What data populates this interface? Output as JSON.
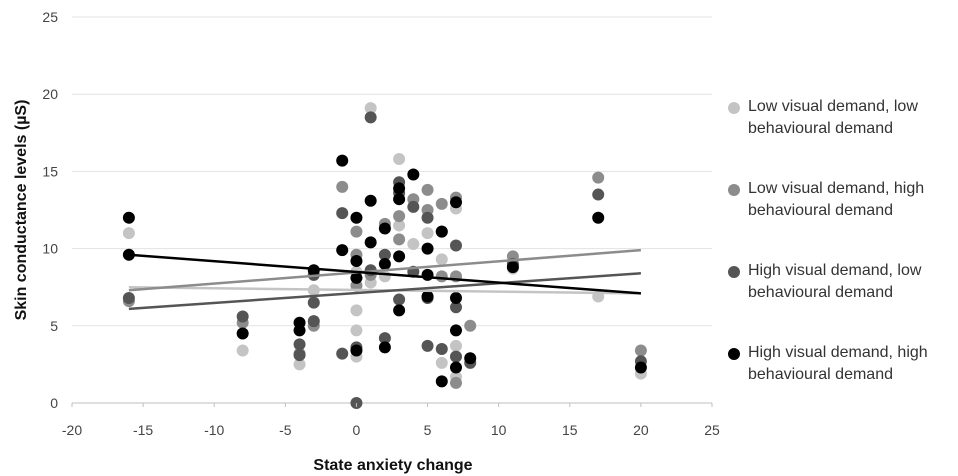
{
  "chart_data": {
    "type": "scatter",
    "xlabel": "State anxiety change",
    "ylabel": "Skin conductance levels (µS)",
    "xlim": [
      -20,
      25
    ],
    "ylim": [
      0,
      25
    ],
    "xticks": [
      "-20",
      "-15",
      "-10",
      "-5",
      "0",
      "5",
      "10",
      "15",
      "20",
      "25"
    ],
    "yticks": [
      "0",
      "5",
      "10",
      "15",
      "20",
      "25"
    ],
    "grid": "horizontal",
    "legend_position": "right",
    "series": [
      {
        "name": "Low visual demand, low behavioural demand",
        "color": "#c4c4c4",
        "points": [
          [
            -16,
            11.0
          ],
          [
            -8,
            3.4
          ],
          [
            -4,
            2.5
          ],
          [
            -3,
            7.3
          ],
          [
            0,
            6.0
          ],
          [
            0,
            4.7
          ],
          [
            0,
            3.0
          ],
          [
            0,
            8.5
          ],
          [
            1,
            19.1
          ],
          [
            1,
            7.8
          ],
          [
            2,
            8.2
          ],
          [
            3,
            15.8
          ],
          [
            3,
            11.5
          ],
          [
            4,
            10.3
          ],
          [
            5,
            11.0
          ],
          [
            6,
            9.3
          ],
          [
            6,
            2.6
          ],
          [
            7,
            12.6
          ],
          [
            7,
            3.7
          ],
          [
            7,
            1.7
          ],
          [
            11,
            8.7
          ],
          [
            17,
            6.9
          ],
          [
            20,
            1.9
          ]
        ],
        "trend": [
          [
            -16,
            7.5
          ],
          [
            20,
            7.1
          ]
        ]
      },
      {
        "name": "Low visual demand, high behavioural demand",
        "color": "#8c8c8c",
        "points": [
          [
            -16,
            6.6
          ],
          [
            -8,
            5.2
          ],
          [
            -4,
            3.2
          ],
          [
            -3,
            5.0
          ],
          [
            -1,
            14.0
          ],
          [
            0,
            11.1
          ],
          [
            0,
            9.6
          ],
          [
            0,
            7.6
          ],
          [
            1,
            8.3
          ],
          [
            2,
            11.6
          ],
          [
            3,
            12.1
          ],
          [
            3,
            10.6
          ],
          [
            4,
            13.2
          ],
          [
            5,
            13.8
          ],
          [
            5,
            12.5
          ],
          [
            6,
            12.9
          ],
          [
            6,
            8.2
          ],
          [
            7,
            13.3
          ],
          [
            7,
            8.2
          ],
          [
            7,
            1.3
          ],
          [
            8,
            5.0
          ],
          [
            11,
            9.5
          ],
          [
            17,
            14.6
          ],
          [
            20,
            3.4
          ]
        ],
        "trend": [
          [
            -16,
            7.3
          ],
          [
            20,
            9.9
          ]
        ]
      },
      {
        "name": "High visual demand, low behavioural demand",
        "color": "#555555",
        "points": [
          [
            -16,
            6.8
          ],
          [
            -8,
            5.6
          ],
          [
            -4,
            3.8
          ],
          [
            -4,
            3.1
          ],
          [
            -3,
            8.3
          ],
          [
            -3,
            6.5
          ],
          [
            -3,
            5.3
          ],
          [
            -1,
            12.3
          ],
          [
            -1,
            3.2
          ],
          [
            0,
            0.0
          ],
          [
            0,
            3.6
          ],
          [
            1,
            18.5
          ],
          [
            1,
            8.6
          ],
          [
            2,
            9.6
          ],
          [
            2,
            4.2
          ],
          [
            3,
            14.3
          ],
          [
            3,
            13.6
          ],
          [
            3,
            6.7
          ],
          [
            4,
            12.7
          ],
          [
            4,
            8.5
          ],
          [
            5,
            12.0
          ],
          [
            5,
            6.8
          ],
          [
            5,
            3.7
          ],
          [
            6,
            11.1
          ],
          [
            6,
            3.5
          ],
          [
            7,
            10.2
          ],
          [
            7,
            6.2
          ],
          [
            7,
            3.0
          ],
          [
            8,
            2.6
          ],
          [
            11,
            9.0
          ],
          [
            17,
            13.5
          ],
          [
            20,
            2.7
          ]
        ],
        "trend": [
          [
            -16,
            6.1
          ],
          [
            20,
            8.4
          ]
        ]
      },
      {
        "name": "High visual demand, high behavioural demand",
        "color": "#000000",
        "points": [
          [
            -16,
            12.0
          ],
          [
            -16,
            9.6
          ],
          [
            -8,
            4.5
          ],
          [
            -4,
            5.2
          ],
          [
            -4,
            4.7
          ],
          [
            -3,
            8.6
          ],
          [
            -1,
            15.7
          ],
          [
            -1,
            9.9
          ],
          [
            0,
            12.0
          ],
          [
            0,
            9.2
          ],
          [
            0,
            8.1
          ],
          [
            0,
            3.4
          ],
          [
            1,
            13.1
          ],
          [
            1,
            10.4
          ],
          [
            2,
            11.3
          ],
          [
            2,
            9.0
          ],
          [
            2,
            3.6
          ],
          [
            3,
            13.9
          ],
          [
            3,
            13.2
          ],
          [
            3,
            9.5
          ],
          [
            3,
            6.0
          ],
          [
            4,
            14.8
          ],
          [
            5,
            10.0
          ],
          [
            5,
            8.3
          ],
          [
            5,
            6.9
          ],
          [
            6,
            11.1
          ],
          [
            6,
            1.4
          ],
          [
            7,
            13.0
          ],
          [
            7,
            6.8
          ],
          [
            7,
            4.7
          ],
          [
            7,
            2.3
          ],
          [
            8,
            2.9
          ],
          [
            11,
            8.8
          ],
          [
            17,
            12.0
          ],
          [
            20,
            2.3
          ]
        ],
        "trend": [
          [
            -16,
            9.6
          ],
          [
            20,
            7.1
          ]
        ]
      }
    ]
  }
}
